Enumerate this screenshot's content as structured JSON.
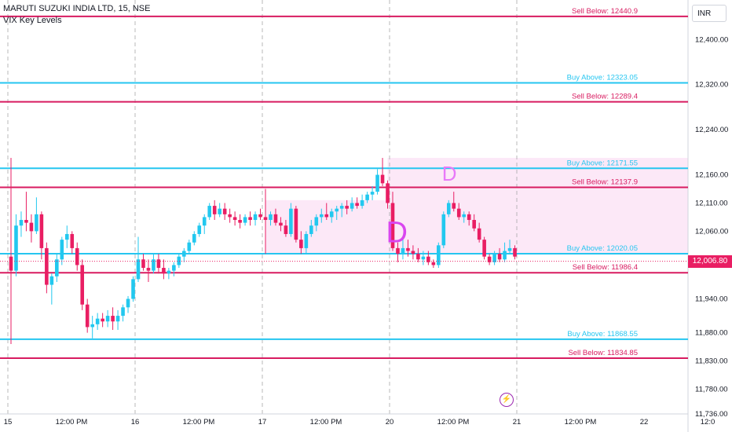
{
  "legend": {
    "title": "MARUTI SUZUKI INDIA LTD, 15, NSE",
    "indicator": "VIX Key Levels"
  },
  "currency_button": "INR",
  "last_price": "12,006.80",
  "colors": {
    "cyan": "#26c6f0",
    "crimson": "#d81b60",
    "pink_zone": "#fce4f6",
    "up": "#22c8ef",
    "down": "#e91e63",
    "grid": "#9e9e9e"
  },
  "chart_data": {
    "type": "candlestick",
    "symbol": "MARUTI SUZUKI INDIA LTD",
    "interval": "15",
    "exchange": "NSE",
    "ylim": [
      11736,
      12470
    ],
    "y_ticks": [
      "12,400.00",
      "12,320.00",
      "12,240.00",
      "12,160.00",
      "12,110.00",
      "12,060.00",
      "11,940.00",
      "11,880.00",
      "11,830.00",
      "11,780.00",
      "11,736.00"
    ],
    "y_tick_values": [
      12400,
      12320,
      12240,
      12160,
      12110,
      12060,
      11940,
      11880,
      11830,
      11780,
      11736
    ],
    "x_ticks": [
      "15",
      "12:00 PM",
      "16",
      "12:00 PM",
      "17",
      "12:00 PM",
      "20",
      "12:00 PM",
      "21",
      "12:00 PM",
      "22",
      "12:0"
    ],
    "x_tick_index": [
      0,
      12.5,
      25,
      37.5,
      50,
      62.5,
      75,
      87.5,
      100,
      112.5,
      125,
      137.5
    ],
    "day_separators": [
      0,
      25,
      50,
      75,
      100
    ],
    "levels": [
      {
        "label": "Sell Below: 12440.9",
        "value": 12440.9,
        "kind": "sell"
      },
      {
        "label": "Buy Above: 12323.05",
        "value": 12323.05,
        "kind": "buy"
      },
      {
        "label": "Sell Below: 12289.4",
        "value": 12289.4,
        "kind": "sell"
      },
      {
        "label": "Buy Above: 12171.55",
        "value": 12171.55,
        "kind": "buy"
      },
      {
        "label": "Sell Below: 12137.9",
        "value": 12137.9,
        "kind": "sell"
      },
      {
        "label": "Buy Above: 12020.05",
        "value": 12020.05,
        "kind": "buy"
      },
      {
        "label": "Sell Below: 11986.4",
        "value": 11986.4,
        "kind": "sell"
      },
      {
        "label": "Buy Above: 11868.55",
        "value": 11868.55,
        "kind": "buy"
      },
      {
        "label": "Sell Below: 11834.85",
        "value": 11834.85,
        "kind": "sell"
      }
    ],
    "zones": [
      {
        "from_index": 50,
        "to_index": 74,
        "low": 12020,
        "high": 12115
      },
      {
        "from_index": 74,
        "to_index": 133,
        "low": 12020,
        "high": 12190
      }
    ],
    "markers": [
      {
        "label": "D",
        "index": 74,
        "value": 12040
      },
      {
        "label": "D",
        "index": 85,
        "value": 12150
      }
    ],
    "candles": [
      [
        12015,
        12190,
        11860,
        11990
      ],
      [
        11990,
        12090,
        11980,
        12070
      ],
      [
        12070,
        12095,
        12050,
        12080
      ],
      [
        12080,
        12130,
        12060,
        12075
      ],
      [
        12075,
        12090,
        12040,
        12060
      ],
      [
        12060,
        12120,
        12055,
        12090
      ],
      [
        12090,
        12095,
        12010,
        12030
      ],
      [
        12030,
        12040,
        11950,
        11965
      ],
      [
        11965,
        11985,
        11930,
        11980
      ],
      [
        11980,
        12020,
        11970,
        12010
      ],
      [
        12010,
        12050,
        12000,
        12045
      ],
      [
        12045,
        12070,
        12030,
        12055
      ],
      [
        12055,
        12060,
        12020,
        12030
      ],
      [
        12030,
        12040,
        11990,
        12000
      ],
      [
        12000,
        12010,
        11920,
        11930
      ],
      [
        11930,
        11940,
        11880,
        11890
      ],
      [
        11890,
        11910,
        11870,
        11895
      ],
      [
        11895,
        11915,
        11885,
        11905
      ],
      [
        11905,
        11915,
        11890,
        11900
      ],
      [
        11900,
        11920,
        11890,
        11910
      ],
      [
        11910,
        11925,
        11885,
        11900
      ],
      [
        11900,
        11920,
        11885,
        11910
      ],
      [
        11910,
        11930,
        11900,
        11925
      ],
      [
        11925,
        11945,
        11915,
        11940
      ],
      [
        11940,
        11980,
        11935,
        11975
      ],
      [
        11975,
        12050,
        11970,
        12010
      ],
      [
        12010,
        12020,
        11990,
        11995
      ],
      [
        11995,
        12010,
        11970,
        11990
      ],
      [
        11990,
        12020,
        11985,
        12010
      ],
      [
        12010,
        12020,
        11985,
        11995
      ],
      [
        11995,
        12010,
        11975,
        11985
      ],
      [
        11985,
        11995,
        11975,
        11990
      ],
      [
        11990,
        12005,
        11980,
        12000
      ],
      [
        12000,
        12020,
        11995,
        12015
      ],
      [
        12015,
        12030,
        12005,
        12025
      ],
      [
        12025,
        12045,
        12020,
        12040
      ],
      [
        12040,
        12060,
        12035,
        12055
      ],
      [
        12055,
        12075,
        12050,
        12070
      ],
      [
        12070,
        12090,
        12055,
        12085
      ],
      [
        12085,
        12110,
        12080,
        12105
      ],
      [
        12105,
        12115,
        12080,
        12090
      ],
      [
        12090,
        12110,
        12085,
        12100
      ],
      [
        12100,
        12110,
        12080,
        12090
      ],
      [
        12090,
        12100,
        12075,
        12085
      ],
      [
        12085,
        12095,
        12070,
        12080
      ],
      [
        12080,
        12090,
        12065,
        12075
      ],
      [
        12075,
        12090,
        12070,
        12085
      ],
      [
        12085,
        12095,
        12070,
        12080
      ],
      [
        12080,
        12095,
        12070,
        12090
      ],
      [
        12090,
        12100,
        12080,
        12085
      ],
      [
        12085,
        12135,
        12020,
        12080
      ],
      [
        12080,
        12095,
        12070,
        12090
      ],
      [
        12090,
        12100,
        12070,
        12075
      ],
      [
        12075,
        12085,
        12060,
        12070
      ],
      [
        12070,
        12080,
        12050,
        12055
      ],
      [
        12055,
        12110,
        12050,
        12100
      ],
      [
        12100,
        12105,
        12040,
        12045
      ],
      [
        12045,
        12060,
        12020,
        12030
      ],
      [
        12030,
        12060,
        12020,
        12055
      ],
      [
        12055,
        12080,
        12050,
        12070
      ],
      [
        12070,
        12090,
        12060,
        12085
      ],
      [
        12085,
        12100,
        12075,
        12090
      ],
      [
        12090,
        12110,
        12080,
        12085
      ],
      [
        12085,
        12100,
        12075,
        12095
      ],
      [
        12095,
        12105,
        12080,
        12100
      ],
      [
        12100,
        12110,
        12085,
        12105
      ],
      [
        12105,
        12115,
        12090,
        12100
      ],
      [
        12100,
        12120,
        12095,
        12110
      ],
      [
        12110,
        12120,
        12100,
        12105
      ],
      [
        12105,
        12125,
        12100,
        12115
      ],
      [
        12115,
        12130,
        12110,
        12125
      ],
      [
        12125,
        12140,
        12115,
        12130
      ],
      [
        12130,
        12170,
        12125,
        12160
      ],
      [
        12160,
        12190,
        12140,
        12145
      ],
      [
        12145,
        12150,
        12100,
        12110
      ],
      [
        12110,
        12130,
        12025,
        12030
      ],
      [
        12030,
        12040,
        12005,
        12020
      ],
      [
        12020,
        12050,
        12010,
        12030
      ],
      [
        12030,
        12045,
        12015,
        12025
      ],
      [
        12025,
        12035,
        12010,
        12020
      ],
      [
        12020,
        12030,
        12005,
        12010
      ],
      [
        12010,
        12025,
        12000,
        12015
      ],
      [
        12015,
        12025,
        12000,
        12005
      ],
      [
        12005,
        12010,
        11995,
        12000
      ],
      [
        12000,
        12040,
        11995,
        12035
      ],
      [
        12035,
        12095,
        12030,
        12090
      ],
      [
        12090,
        12115,
        12085,
        12110
      ],
      [
        12110,
        12130,
        12095,
        12100
      ],
      [
        12100,
        12110,
        12080,
        12085
      ],
      [
        12085,
        12095,
        12075,
        12090
      ],
      [
        12090,
        12095,
        12070,
        12080
      ],
      [
        12080,
        12090,
        12060,
        12065
      ],
      [
        12065,
        12075,
        12040,
        12045
      ],
      [
        12045,
        12050,
        12010,
        12015
      ],
      [
        12015,
        12020,
        12000,
        12005
      ],
      [
        12005,
        12025,
        12000,
        12020
      ],
      [
        12020,
        12030,
        12005,
        12010
      ],
      [
        12010,
        12040,
        12005,
        12025
      ],
      [
        12025,
        12045,
        12020,
        12030
      ],
      [
        12030,
        12035,
        12010,
        12015
      ]
    ]
  }
}
